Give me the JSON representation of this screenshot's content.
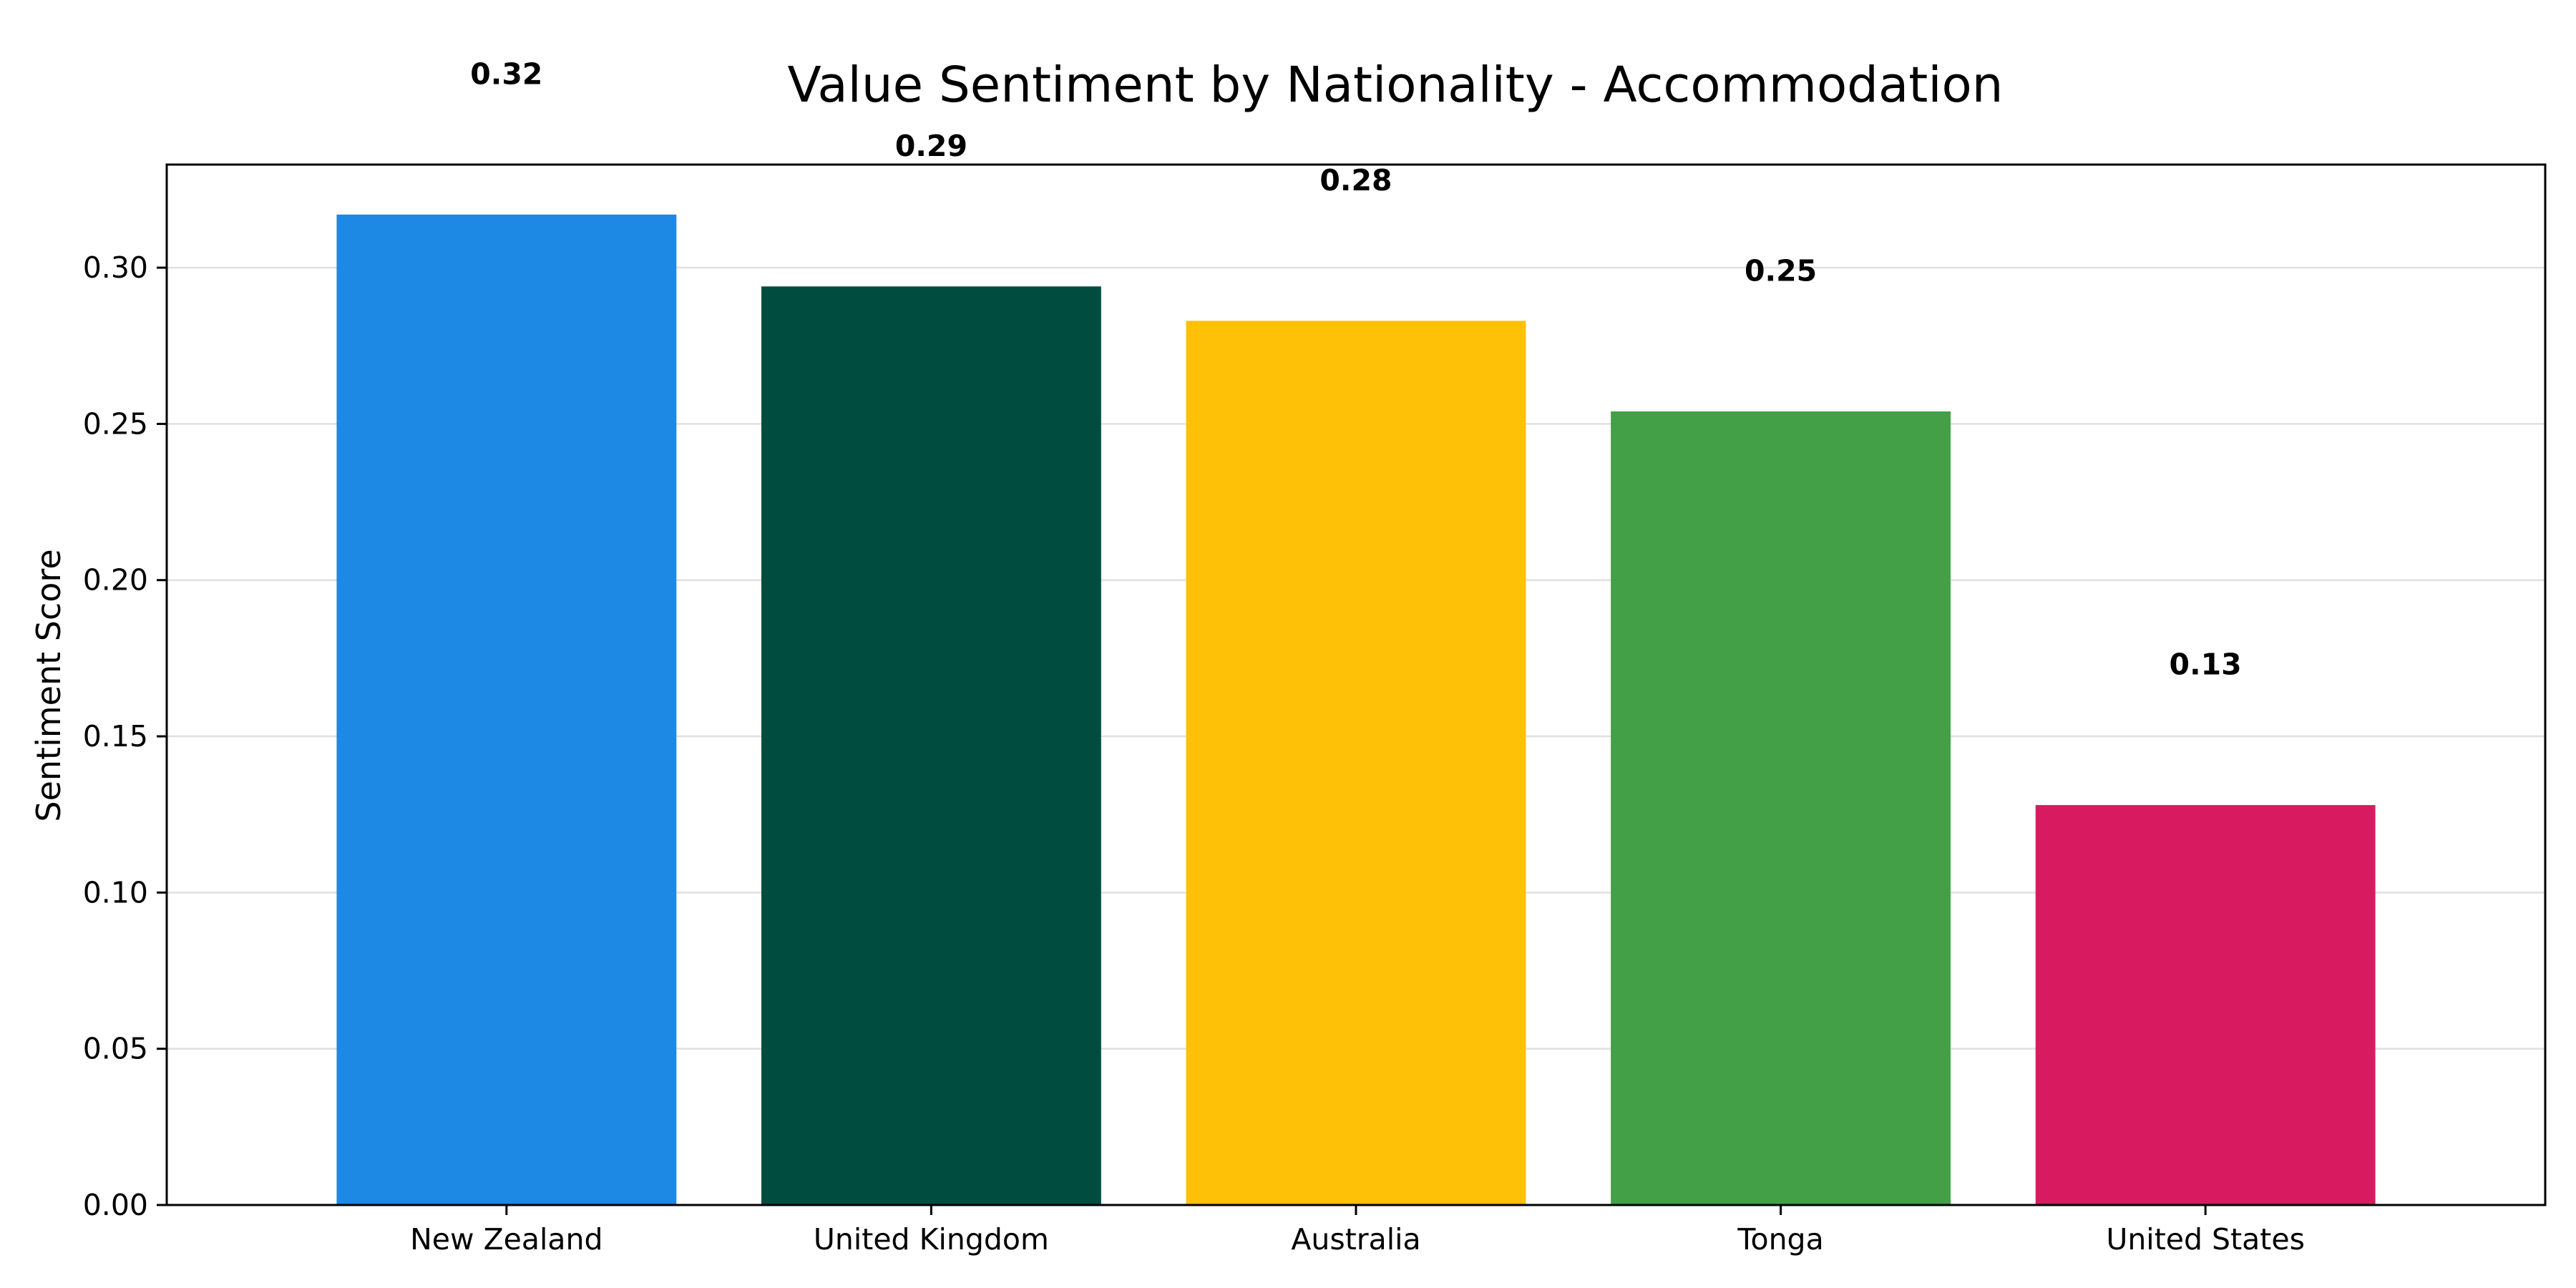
{
  "chart_data": {
    "type": "bar",
    "title": "Value Sentiment by Nationality - Accommodation",
    "xlabel": "",
    "ylabel": "Sentiment Score",
    "categories": [
      "New Zealand",
      "United Kingdom",
      "Australia",
      "Tonga",
      "United States"
    ],
    "values": [
      0.317,
      0.294,
      0.283,
      0.254,
      0.128
    ],
    "data_labels": [
      "0.32",
      "0.29",
      "0.28",
      "0.25",
      "0.13"
    ],
    "colors": [
      "#1E88E5",
      "#004D40",
      "#FFC107",
      "#43A047",
      "#D81B60"
    ],
    "ylim": [
      0,
      0.333
    ],
    "yticks": [
      0.0,
      0.05,
      0.1,
      0.15,
      0.2,
      0.25,
      0.3
    ],
    "ytick_labels": [
      "0.00",
      "0.05",
      "0.10",
      "0.15",
      "0.20",
      "0.25",
      "0.30"
    ],
    "grid": true,
    "grid_axis": "y",
    "legend": "none"
  }
}
